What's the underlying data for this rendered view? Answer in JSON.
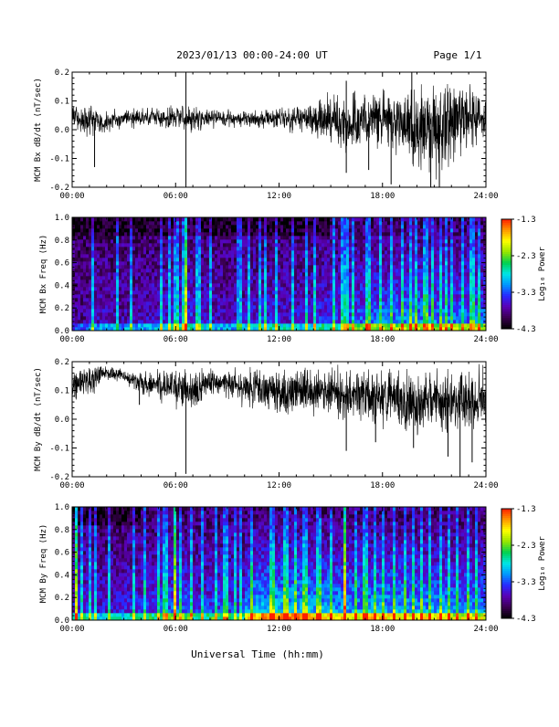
{
  "header": {
    "date_range": "2023/01/13  00:00-24:00 UT",
    "page": "Page 1/1"
  },
  "x_axis": {
    "label": "Universal Time (hh:mm)",
    "tick_labels": [
      "00:00",
      "06:00",
      "12:00",
      "18:00",
      "24:00"
    ],
    "tick_hours": [
      0,
      6,
      12,
      18,
      24
    ],
    "range_hours": [
      0,
      24
    ]
  },
  "colorbar": {
    "label": "Log₁₀ Power",
    "tick_labels": [
      "-1.3",
      "-2.3",
      "-3.3",
      "-4.3"
    ],
    "tick_values": [
      -1.3,
      -2.3,
      -3.3,
      -4.3
    ],
    "range": [
      -4.3,
      -1.3
    ],
    "palette": [
      "#000000",
      "#3a0050",
      "#5a00b4",
      "#2828ff",
      "#0096ff",
      "#00e6e6",
      "#00d050",
      "#96e600",
      "#ffff00",
      "#ff9600",
      "#ff1e00"
    ]
  },
  "chart_data": [
    {
      "type": "line",
      "ylabel": "MCM Bx dB/dt (nT/sec)",
      "yticks": [
        "0.2",
        "0.1",
        "0.0",
        "-0.1",
        "-0.2"
      ],
      "ytick_values": [
        0.2,
        0.1,
        0.0,
        -0.1,
        -0.2
      ],
      "ylim": [
        -0.2,
        0.2
      ],
      "grid": false,
      "x_unit": "hours UT",
      "envelope": {
        "hour": [
          0,
          1,
          2,
          3,
          4,
          5,
          6,
          7,
          8,
          9,
          10,
          11,
          12,
          13,
          14,
          15,
          16,
          17,
          18,
          19,
          20,
          21,
          22,
          23,
          24
        ],
        "max": [
          0.1,
          0.1,
          0.08,
          0.08,
          0.08,
          0.09,
          0.1,
          0.1,
          0.08,
          0.08,
          0.07,
          0.08,
          0.09,
          0.1,
          0.12,
          0.14,
          0.17,
          0.14,
          0.17,
          0.2,
          0.2,
          0.2,
          0.2,
          0.2,
          0.12
        ],
        "min": [
          -0.01,
          -0.04,
          -0.03,
          0.0,
          0.0,
          0.0,
          -0.02,
          -0.03,
          0.0,
          0.0,
          0.0,
          0.0,
          -0.01,
          -0.02,
          -0.05,
          -0.07,
          -0.14,
          -0.08,
          -0.1,
          -0.15,
          -0.2,
          -0.2,
          -0.14,
          -0.1,
          -0.04
        ]
      },
      "spikes": [
        {
          "hour": 6.6,
          "value": 0.2
        },
        {
          "hour": 6.6,
          "value": -0.2
        },
        {
          "hour": 1.3,
          "value": -0.13
        },
        {
          "hour": 15.9,
          "value": 0.17
        },
        {
          "hour": 15.9,
          "value": -0.15
        },
        {
          "hour": 18.5,
          "value": -0.19
        },
        {
          "hour": 20.8,
          "value": -0.2
        },
        {
          "hour": 21.3,
          "value": -0.2
        },
        {
          "hour": 17.2,
          "value": -0.14
        },
        {
          "hour": 19.7,
          "value": 0.2
        }
      ]
    },
    {
      "type": "heatmap",
      "ylabel": "MCM Bx Freq (Hz)",
      "yticks": [
        "1.0",
        "0.8",
        "0.6",
        "0.4",
        "0.2",
        "0.0"
      ],
      "ytick_values": [
        1.0,
        0.8,
        0.6,
        0.4,
        0.2,
        0.0
      ],
      "ylim": [
        0,
        1
      ],
      "activity": [
        0.1,
        0.2,
        0.18,
        0.2,
        0.22,
        0.3,
        0.4,
        0.3,
        0.22,
        0.2,
        0.3,
        0.35,
        0.3,
        0.3,
        0.38,
        0.4,
        0.5,
        0.55,
        0.6,
        0.62,
        0.62,
        0.6,
        0.55,
        0.55
      ],
      "streak_hours": [
        1.2,
        2.6,
        3.4,
        5.2,
        5.7,
        6.05,
        6.45,
        6.6,
        7.2,
        7.4,
        8.0,
        9.6,
        9.8,
        10.3,
        10.9,
        11.2,
        11.9,
        12.8,
        13.6,
        14.1,
        15.2,
        15.6,
        15.9,
        16.3,
        17.1,
        17.3,
        17.9,
        18.5,
        19.2,
        19.6,
        19.9,
        20.5,
        20.9,
        21.4,
        21.7,
        22.0,
        22.6,
        23.2,
        23.6
      ],
      "strong_streak_hours": [
        6.6
      ]
    },
    {
      "type": "line",
      "ylabel": "MCM By dB/dt (nT/sec)",
      "yticks": [
        "0.2",
        "0.1",
        "0.0",
        "-0.1",
        "-0.2"
      ],
      "ytick_values": [
        0.2,
        0.1,
        0.0,
        -0.1,
        -0.2
      ],
      "ylim": [
        -0.2,
        0.2
      ],
      "grid": false,
      "x_unit": "hours UT",
      "envelope": {
        "hour": [
          0,
          1,
          2,
          3,
          4,
          5,
          6,
          7,
          8,
          9,
          10,
          11,
          12,
          13,
          14,
          15,
          16,
          17,
          18,
          19,
          20,
          21,
          22,
          23,
          24
        ],
        "max": [
          0.2,
          0.2,
          0.2,
          0.18,
          0.17,
          0.19,
          0.2,
          0.2,
          0.19,
          0.19,
          0.2,
          0.2,
          0.2,
          0.2,
          0.2,
          0.2,
          0.2,
          0.2,
          0.2,
          0.2,
          0.2,
          0.2,
          0.2,
          0.2,
          0.2
        ],
        "min": [
          0.04,
          0.06,
          0.12,
          0.12,
          0.08,
          0.06,
          0.02,
          0.0,
          0.05,
          0.06,
          0.03,
          0.0,
          -0.01,
          -0.02,
          0.0,
          -0.02,
          -0.04,
          -0.03,
          -0.07,
          -0.07,
          -0.1,
          -0.06,
          -0.09,
          -0.08,
          -0.06
        ]
      },
      "spikes": [
        {
          "hour": 6.6,
          "value": -0.19
        },
        {
          "hour": 15.9,
          "value": -0.11
        },
        {
          "hour": 3.9,
          "value": 0.05
        },
        {
          "hour": 21.8,
          "value": -0.13
        },
        {
          "hour": 22.5,
          "value": -0.2
        },
        {
          "hour": 23.2,
          "value": -0.15
        },
        {
          "hour": 19.8,
          "value": -0.1
        },
        {
          "hour": 17.6,
          "value": -0.08
        }
      ]
    },
    {
      "type": "heatmap",
      "ylabel": "MCM By Freq (Hz)",
      "yticks": [
        "1.0",
        "0.8",
        "0.6",
        "0.4",
        "0.2",
        "0.0"
      ],
      "ytick_values": [
        1.0,
        0.8,
        0.6,
        0.4,
        0.2,
        0.0
      ],
      "ylim": [
        0,
        1
      ],
      "activity": [
        0.35,
        0.3,
        0.32,
        0.35,
        0.4,
        0.5,
        0.52,
        0.4,
        0.45,
        0.4,
        0.75,
        0.82,
        0.85,
        0.8,
        0.75,
        0.72,
        0.68,
        0.72,
        0.72,
        0.7,
        0.72,
        0.7,
        0.65,
        0.65
      ],
      "streak_hours": [
        0.2,
        0.6,
        1.0,
        1.3,
        2.2,
        3.6,
        4.2,
        5.0,
        5.4,
        5.9,
        6.3,
        6.9,
        7.6,
        8.3,
        8.9,
        9.4,
        9.8,
        10.4,
        11.6,
        12.4,
        13.0,
        13.5,
        14.3,
        15.0,
        15.8,
        16.4,
        17.0,
        17.5,
        18.0,
        18.7,
        19.3,
        19.8,
        20.3,
        20.8,
        21.4,
        21.9,
        22.4,
        23.0,
        23.5
      ],
      "strong_streak_hours": [
        0.3,
        5.9,
        15.8
      ]
    }
  ]
}
